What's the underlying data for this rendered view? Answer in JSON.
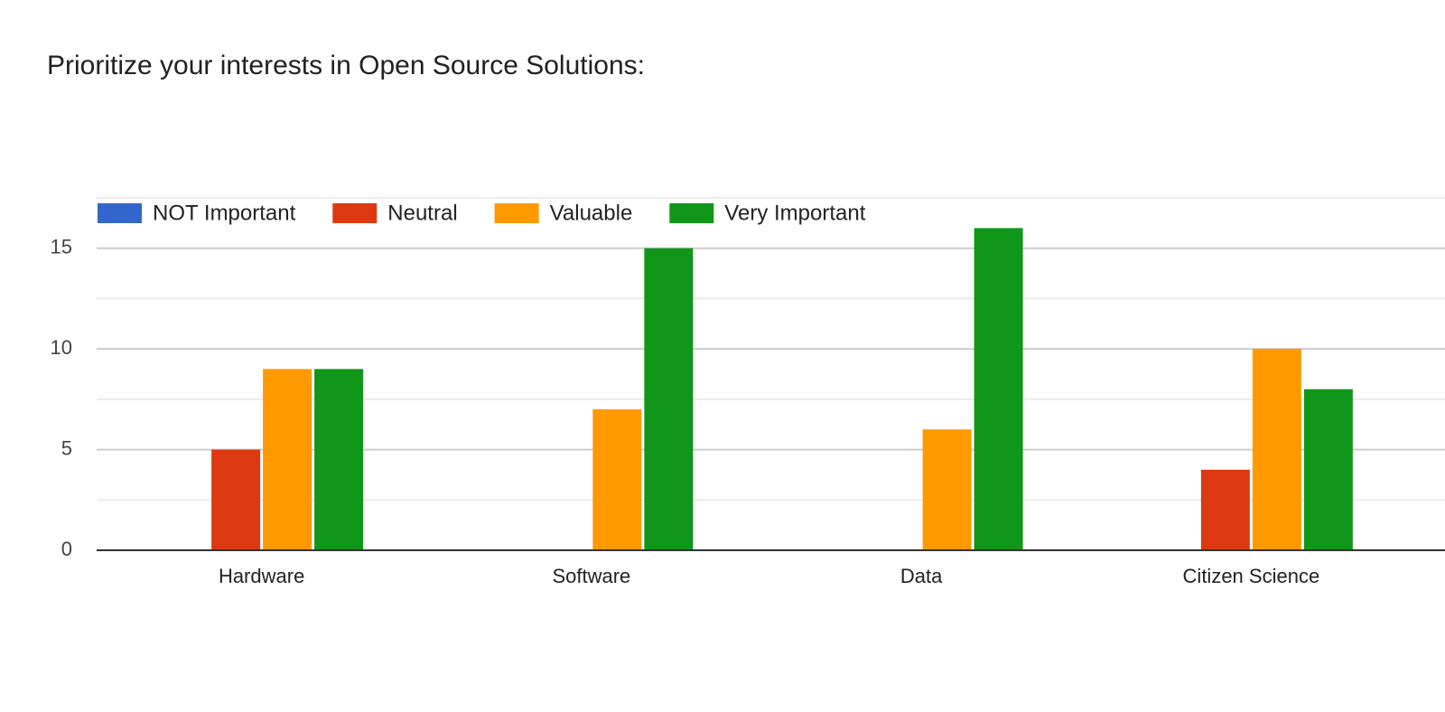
{
  "chart_data": {
    "type": "bar",
    "title": "Prioritize your interests in Open Source Solutions:",
    "categories": [
      "Hardware",
      "Software",
      "Data",
      "Citizen Science"
    ],
    "series": [
      {
        "name": "NOT Important",
        "color": "#3366cc",
        "values": [
          0,
          0,
          0,
          0
        ]
      },
      {
        "name": "Neutral",
        "color": "#dc3912",
        "values": [
          5,
          0,
          0,
          4
        ]
      },
      {
        "name": "Valuable",
        "color": "#ff9900",
        "values": [
          9,
          7,
          6,
          10
        ]
      },
      {
        "name": "Very Important",
        "color": "#109618",
        "values": [
          9,
          15,
          16,
          8
        ]
      }
    ],
    "ylim": [
      0,
      17.5
    ],
    "yticks": [
      0,
      5,
      10,
      15
    ],
    "minor_yticks": [
      2.5,
      7.5,
      12.5,
      17.5
    ],
    "grid": true,
    "legend": "top-left"
  }
}
